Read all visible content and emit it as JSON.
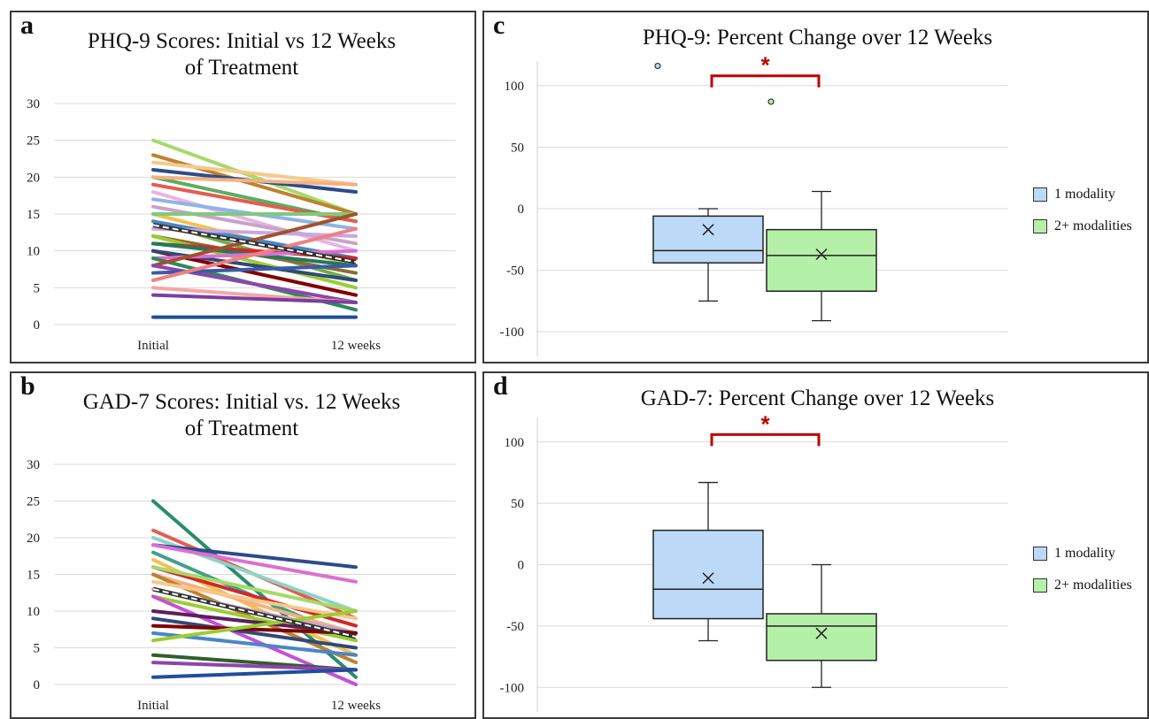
{
  "colors": {
    "box1": "#bcd9f7",
    "box2": "#b5f0a8",
    "sig": "#c00000",
    "grid": "#d9d9d9"
  },
  "panels": {
    "a": {
      "label": "a",
      "title_line1": "PHQ-9 Scores: Initial vs 12 Weeks",
      "title_line2": "of Treatment"
    },
    "b": {
      "label": "b",
      "title_line1": "GAD-7 Scores: Initial vs. 12 Weeks",
      "title_line2": "of Treatment"
    },
    "c": {
      "label": "c",
      "title": "PHQ-9: Percent Change over 12 Weeks",
      "sig_marker": "*"
    },
    "d": {
      "label": "d",
      "title": "GAD-7: Percent Change over 12 Weeks",
      "sig_marker": "*"
    }
  },
  "legend": {
    "item1": "1 modality",
    "item2": "2+ modalities"
  },
  "chart_data": [
    {
      "id": "a",
      "type": "line",
      "title": "PHQ-9 Scores: Initial vs 12 Weeks of Treatment",
      "categories": [
        "Initial",
        "12 weeks"
      ],
      "ylim": [
        0,
        30
      ],
      "yticks": [
        0,
        5,
        10,
        15,
        20,
        25,
        30
      ],
      "grid": true,
      "series": [
        {
          "values": [
            25,
            15
          ],
          "color": "#a6d96a"
        },
        {
          "values": [
            23,
            15
          ],
          "color": "#bf812d"
        },
        {
          "values": [
            22,
            19
          ],
          "color": "#f6c98b"
        },
        {
          "values": [
            21,
            18
          ],
          "color": "#2c4b8a"
        },
        {
          "values": [
            20,
            14
          ],
          "color": "#5aae61"
        },
        {
          "values": [
            20,
            19
          ],
          "color": "#f4b183"
        },
        {
          "values": [
            19,
            14
          ],
          "color": "#e35d4f"
        },
        {
          "values": [
            18,
            10
          ],
          "color": "#e7b5e0"
        },
        {
          "values": [
            17,
            13
          ],
          "color": "#8fb3e6"
        },
        {
          "values": [
            16,
            11
          ],
          "color": "#c8a2c8"
        },
        {
          "values": [
            15,
            8
          ],
          "color": "#f2c14e"
        },
        {
          "values": [
            15,
            15
          ],
          "color": "#7fc97f"
        },
        {
          "values": [
            14,
            6
          ],
          "color": "#70ad47"
        },
        {
          "values": [
            14,
            9
          ],
          "color": "#4a86c7"
        },
        {
          "values": [
            13,
            12
          ],
          "color": "#c7a8e0"
        },
        {
          "values": [
            12,
            7
          ],
          "color": "#8c6d31"
        },
        {
          "values": [
            12,
            5
          ],
          "color": "#9acd32"
        },
        {
          "values": [
            11,
            9
          ],
          "color": "#d62728"
        },
        {
          "values": [
            11,
            8
          ],
          "color": "#1f7a5c"
        },
        {
          "values": [
            10,
            4
          ],
          "color": "#800000"
        },
        {
          "values": [
            10,
            6
          ],
          "color": "#31497a"
        },
        {
          "values": [
            9,
            10
          ],
          "color": "#dd6fcf"
        },
        {
          "values": [
            9,
            2
          ],
          "color": "#2e8b57"
        },
        {
          "values": [
            8,
            15
          ],
          "color": "#a0522d"
        },
        {
          "values": [
            8,
            3
          ],
          "color": "#8e44ad"
        },
        {
          "values": [
            7,
            8
          ],
          "color": "#3b5ba5"
        },
        {
          "values": [
            6,
            13
          ],
          "color": "#f08080"
        },
        {
          "values": [
            5,
            3
          ],
          "color": "#f4a6a6"
        },
        {
          "values": [
            4,
            3
          ],
          "color": "#7b3fa0"
        },
        {
          "values": [
            1,
            1
          ],
          "color": "#1f4e9c"
        },
        {
          "values": [
            13.5,
            8.5
          ],
          "color": "#ffffff",
          "dashed": true
        }
      ]
    },
    {
      "id": "b",
      "type": "line",
      "title": "GAD-7 Scores: Initial vs. 12 Weeks of Treatment",
      "categories": [
        "Initial",
        "12 weeks"
      ],
      "ylim": [
        0,
        30
      ],
      "yticks": [
        0,
        5,
        10,
        15,
        20,
        25,
        30
      ],
      "grid": true,
      "series": [
        {
          "values": [
            25,
            1
          ],
          "color": "#2a8c6e"
        },
        {
          "values": [
            21,
            9
          ],
          "color": "#e35d4f"
        },
        {
          "values": [
            20,
            10
          ],
          "color": "#8fd3c8"
        },
        {
          "values": [
            19,
            16
          ],
          "color": "#2c4b8a"
        },
        {
          "values": [
            19,
            14
          ],
          "color": "#dd6fcf"
        },
        {
          "values": [
            18,
            6
          ],
          "color": "#41a08a"
        },
        {
          "values": [
            17,
            4
          ],
          "color": "#f2c14e"
        },
        {
          "values": [
            16,
            8
          ],
          "color": "#d62728"
        },
        {
          "values": [
            16,
            10
          ],
          "color": "#a6d96a"
        },
        {
          "values": [
            15,
            7
          ],
          "color": "#f4b183"
        },
        {
          "values": [
            15,
            3
          ],
          "color": "#bf812d"
        },
        {
          "values": [
            14,
            9
          ],
          "color": "#f6c98b"
        },
        {
          "values": [
            13,
            7
          ],
          "color": "#c8a2c8"
        },
        {
          "values": [
            12,
            6
          ],
          "color": "#9acd32"
        },
        {
          "values": [
            12,
            0
          ],
          "color": "#c74fd6"
        },
        {
          "values": [
            10,
            7
          ],
          "color": "#5b1f5b"
        },
        {
          "values": [
            9,
            5
          ],
          "color": "#31497a"
        },
        {
          "values": [
            8,
            7
          ],
          "color": "#800000"
        },
        {
          "values": [
            7,
            4
          ],
          "color": "#4a86c7"
        },
        {
          "values": [
            6,
            10
          ],
          "color": "#9acd32"
        },
        {
          "values": [
            4,
            2
          ],
          "color": "#2e5e2e"
        },
        {
          "values": [
            3,
            2
          ],
          "color": "#8e44ad"
        },
        {
          "values": [
            1,
            2
          ],
          "color": "#1f4e9c"
        },
        {
          "values": [
            13,
            6.5
          ],
          "color": "#ffffff",
          "dashed": true
        }
      ]
    },
    {
      "id": "c",
      "type": "box",
      "title": "PHQ-9: Percent Change over 12 Weeks",
      "ylim": [
        -120,
        120
      ],
      "yticks": [
        -100,
        -50,
        0,
        50,
        100
      ],
      "grid": true,
      "significance": "*",
      "series": [
        {
          "name": "1 modality",
          "min": -75,
          "q1": -44,
          "median": -34,
          "q3": -6,
          "max": 0,
          "mean": -17,
          "outliers": [
            116
          ]
        },
        {
          "name": "2+ modalities",
          "min": -91,
          "q1": -67,
          "median": -38,
          "q3": -17,
          "max": 14,
          "mean": -37,
          "outliers": [
            87
          ]
        }
      ]
    },
    {
      "id": "d",
      "type": "box",
      "title": "GAD-7: Percent Change over 12 Weeks",
      "ylim": [
        -120,
        120
      ],
      "yticks": [
        -100,
        -50,
        0,
        50,
        100
      ],
      "grid": true,
      "significance": "*",
      "series": [
        {
          "name": "1 modality",
          "min": -62,
          "q1": -44,
          "median": -20,
          "q3": 28,
          "max": 67,
          "mean": -11,
          "outliers": []
        },
        {
          "name": "2+ modalities",
          "min": -100,
          "q1": -78,
          "median": -50,
          "q3": -40,
          "max": 0,
          "mean": -56,
          "outliers": []
        }
      ]
    }
  ]
}
